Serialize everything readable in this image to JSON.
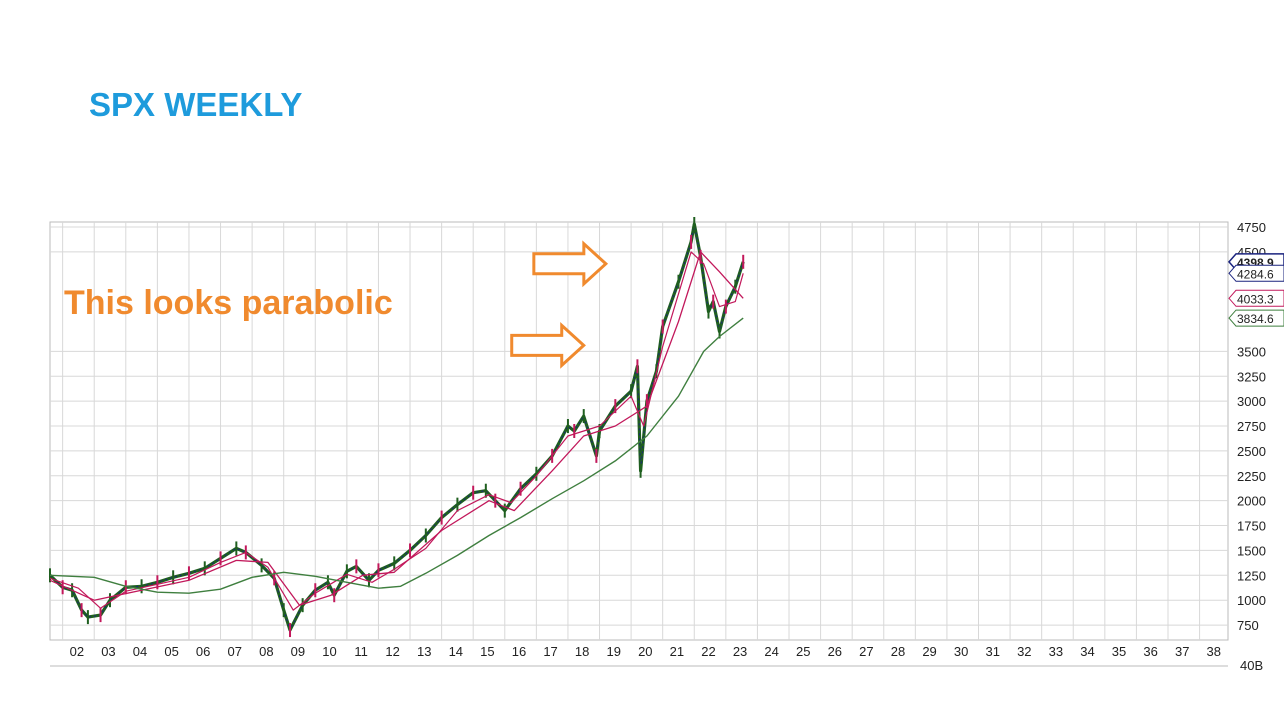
{
  "title": "SPX WEEKLY",
  "annotation": "This looks parabolic",
  "colors": {
    "title": "#1e9bdc",
    "annotation": "#f08a2e",
    "price_up": "#1f5f1f",
    "price_down": "#1a237e",
    "ma_short": "#c2185b",
    "ma_long": "#3f7f3f",
    "last_price_box": "#1a237e"
  },
  "chart_data": {
    "type": "line",
    "title": "",
    "xlabel": "",
    "ylabel": "",
    "x_ticks": [
      "02",
      "03",
      "04",
      "05",
      "06",
      "07",
      "08",
      "09",
      "10",
      "11",
      "12",
      "13",
      "14",
      "15",
      "16",
      "17",
      "18",
      "19",
      "20",
      "21",
      "22",
      "23",
      "24",
      "25",
      "26",
      "27",
      "28",
      "29",
      "30",
      "31",
      "32",
      "33",
      "34",
      "35",
      "36",
      "37",
      "38"
    ],
    "y_ticks": [
      750,
      1000,
      1250,
      1500,
      1750,
      2000,
      2250,
      2500,
      2750,
      3000,
      3250,
      3500,
      4500,
      4750
    ],
    "ylim": [
      600,
      4800
    ],
    "xlim": [
      2001.6,
      2038.9
    ],
    "grid": true,
    "volume_label": "40B",
    "last_values": [
      {
        "label": "4398.9",
        "series": "price",
        "value": 4398.9,
        "color": "#1a237e"
      },
      {
        "label": "4284.6",
        "series": "ma_short",
        "value": 4284.6,
        "color": "#1a237e"
      },
      {
        "label": "4033.3",
        "series": "ma_mid",
        "value": 4033.3,
        "color": "#c2185b"
      },
      {
        "label": "3834.6",
        "series": "ma_long",
        "value": 3834.6,
        "color": "#3f7f3f"
      }
    ],
    "series": [
      {
        "key": "price",
        "x": [
          2001.6,
          2002.0,
          2002.3,
          2002.6,
          2002.8,
          2003.2,
          2003.5,
          2004.0,
          2004.5,
          2005.0,
          2005.5,
          2006.0,
          2006.5,
          2007.0,
          2007.5,
          2007.8,
          2008.3,
          2008.7,
          2009.0,
          2009.2,
          2009.6,
          2010.0,
          2010.4,
          2010.6,
          2011.0,
          2011.3,
          2011.7,
          2012.0,
          2012.5,
          2013.0,
          2013.5,
          2014.0,
          2014.5,
          2015.0,
          2015.4,
          2015.7,
          2016.0,
          2016.5,
          2017.0,
          2017.5,
          2018.0,
          2018.2,
          2018.5,
          2018.9,
          2019.0,
          2019.5,
          2020.0,
          2020.2,
          2020.3,
          2020.5,
          2020.8,
          2021.0,
          2021.5,
          2021.9,
          2022.0,
          2022.2,
          2022.45,
          2022.6,
          2022.8,
          2023.0,
          2023.3,
          2023.55
        ],
        "y": [
          1250,
          1130,
          1100,
          900,
          830,
          850,
          1000,
          1130,
          1140,
          1180,
          1230,
          1270,
          1320,
          1420,
          1520,
          1480,
          1350,
          1220,
          900,
          700,
          950,
          1100,
          1180,
          1050,
          1290,
          1340,
          1200,
          1300,
          1370,
          1500,
          1650,
          1830,
          1960,
          2080,
          2100,
          2000,
          1900,
          2120,
          2270,
          2450,
          2750,
          2700,
          2850,
          2450,
          2700,
          2950,
          3100,
          3350,
          2300,
          3000,
          3300,
          3750,
          4200,
          4600,
          4780,
          4450,
          3900,
          4000,
          3700,
          3950,
          4150,
          4400
        ]
      },
      {
        "key": "ma_short",
        "x": [
          2001.6,
          2002.5,
          2003.2,
          2004.0,
          2005.0,
          2006.0,
          2007.0,
          2007.8,
          2008.5,
          2009.3,
          2010.0,
          2011.0,
          2011.8,
          2012.5,
          2013.5,
          2014.5,
          2015.5,
          2016.2,
          2017.0,
          2018.0,
          2019.0,
          2020.0,
          2020.4,
          2021.0,
          2021.9,
          2022.3,
          2022.8,
          2023.3,
          2023.55
        ],
        "y": [
          1220,
          1120,
          920,
          1090,
          1160,
          1230,
          1380,
          1480,
          1330,
          900,
          1070,
          1260,
          1180,
          1310,
          1520,
          1900,
          2060,
          1980,
          2250,
          2650,
          2750,
          3050,
          2750,
          3550,
          4500,
          4380,
          3950,
          4000,
          4284.6
        ]
      },
      {
        "key": "ma_mid",
        "x": [
          2001.6,
          2003.0,
          2004.5,
          2006.0,
          2007.5,
          2008.5,
          2009.5,
          2010.5,
          2011.5,
          2012.5,
          2014.0,
          2015.5,
          2016.3,
          2017.5,
          2018.5,
          2019.5,
          2020.5,
          2021.5,
          2022.2,
          2022.8,
          2023.55
        ],
        "y": [
          1200,
          1000,
          1100,
          1200,
          1400,
          1380,
          950,
          1050,
          1250,
          1280,
          1700,
          2000,
          1900,
          2300,
          2650,
          2750,
          2950,
          3800,
          4500,
          4300,
          4033.3
        ]
      },
      {
        "key": "ma_long",
        "x": [
          2001.6,
          2003.0,
          2004.0,
          2005.0,
          2006.0,
          2007.0,
          2008.0,
          2009.0,
          2010.0,
          2011.0,
          2012.0,
          2012.7,
          2013.5,
          2014.5,
          2015.5,
          2016.5,
          2017.5,
          2018.5,
          2019.5,
          2020.5,
          2021.5,
          2022.3,
          2022.8,
          2023.55
        ],
        "y": [
          1250,
          1230,
          1140,
          1080,
          1070,
          1110,
          1230,
          1280,
          1240,
          1180,
          1120,
          1140,
          1270,
          1450,
          1650,
          1830,
          2020,
          2200,
          2400,
          2650,
          3050,
          3500,
          3650,
          3834.6
        ]
      }
    ],
    "arrows": [
      {
        "x": 2019.2,
        "y": 4380,
        "direction": "right"
      },
      {
        "x": 2018.5,
        "y": 3560,
        "direction": "right"
      }
    ]
  }
}
